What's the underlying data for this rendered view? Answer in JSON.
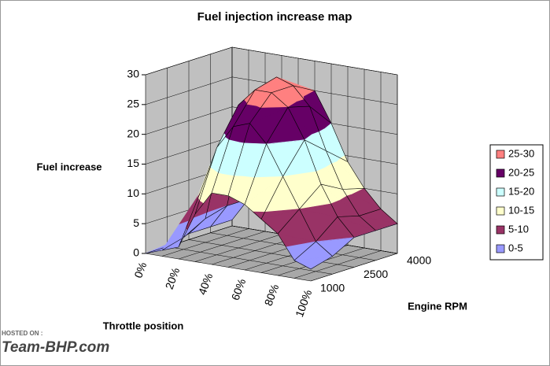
{
  "chart_data": {
    "type": "surface3d",
    "title": "Fuel injection increase map",
    "zlabel": "Fuel increase",
    "xlabel": "Throttle position",
    "ylabel": "Engine RPM",
    "x_categories": [
      "0%",
      null,
      "20%",
      null,
      "40%",
      null,
      "60%",
      null,
      "80%",
      null,
      "100%"
    ],
    "y_categories": [
      "1000",
      null,
      "2500",
      null,
      "4000"
    ],
    "values": [
      [
        0,
        1,
        2,
        8,
        12,
        12,
        11,
        9,
        7,
        3,
        2
      ],
      [
        0,
        2,
        10,
        18,
        22,
        23,
        20,
        15,
        10,
        5,
        3
      ],
      [
        1,
        4,
        16,
        24,
        27,
        27,
        25,
        20,
        13,
        8,
        5
      ],
      [
        1,
        5,
        18,
        25,
        28,
        27,
        24,
        17,
        11,
        7,
        5
      ],
      [
        1,
        5,
        17,
        23,
        25,
        25,
        20,
        14,
        10,
        7,
        5
      ]
    ],
    "zlim": [
      0,
      30
    ],
    "zticks": [
      0,
      5,
      10,
      15,
      20,
      25,
      30
    ],
    "bands": [
      {
        "name": "25-30",
        "color": "#ff8080"
      },
      {
        "name": "20-25",
        "color": "#660066"
      },
      {
        "name": "15-20",
        "color": "#ccffff"
      },
      {
        "name": "10-15",
        "color": "#ffffcc"
      },
      {
        "name": "5-10",
        "color": "#993366"
      },
      {
        "name": "0-5",
        "color": "#9999ff"
      }
    ],
    "wall_color": "#c0c0c0",
    "grid": true
  },
  "watermark": {
    "hosted": "HOSTED ON :",
    "brand": "Team-BHP.com"
  }
}
